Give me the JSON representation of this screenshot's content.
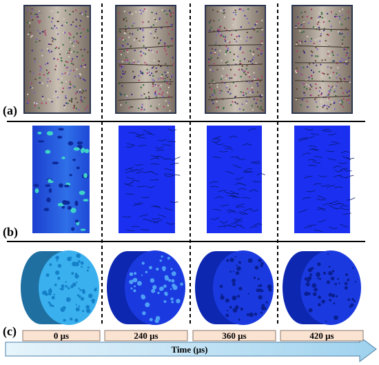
{
  "panels": {
    "a": "(a)",
    "b": "(b)",
    "c": "(c)"
  },
  "time_labels": [
    "0 μs",
    "240 μs",
    "360 μs",
    "420 μs"
  ],
  "time_axis": "Time (μs)"
}
